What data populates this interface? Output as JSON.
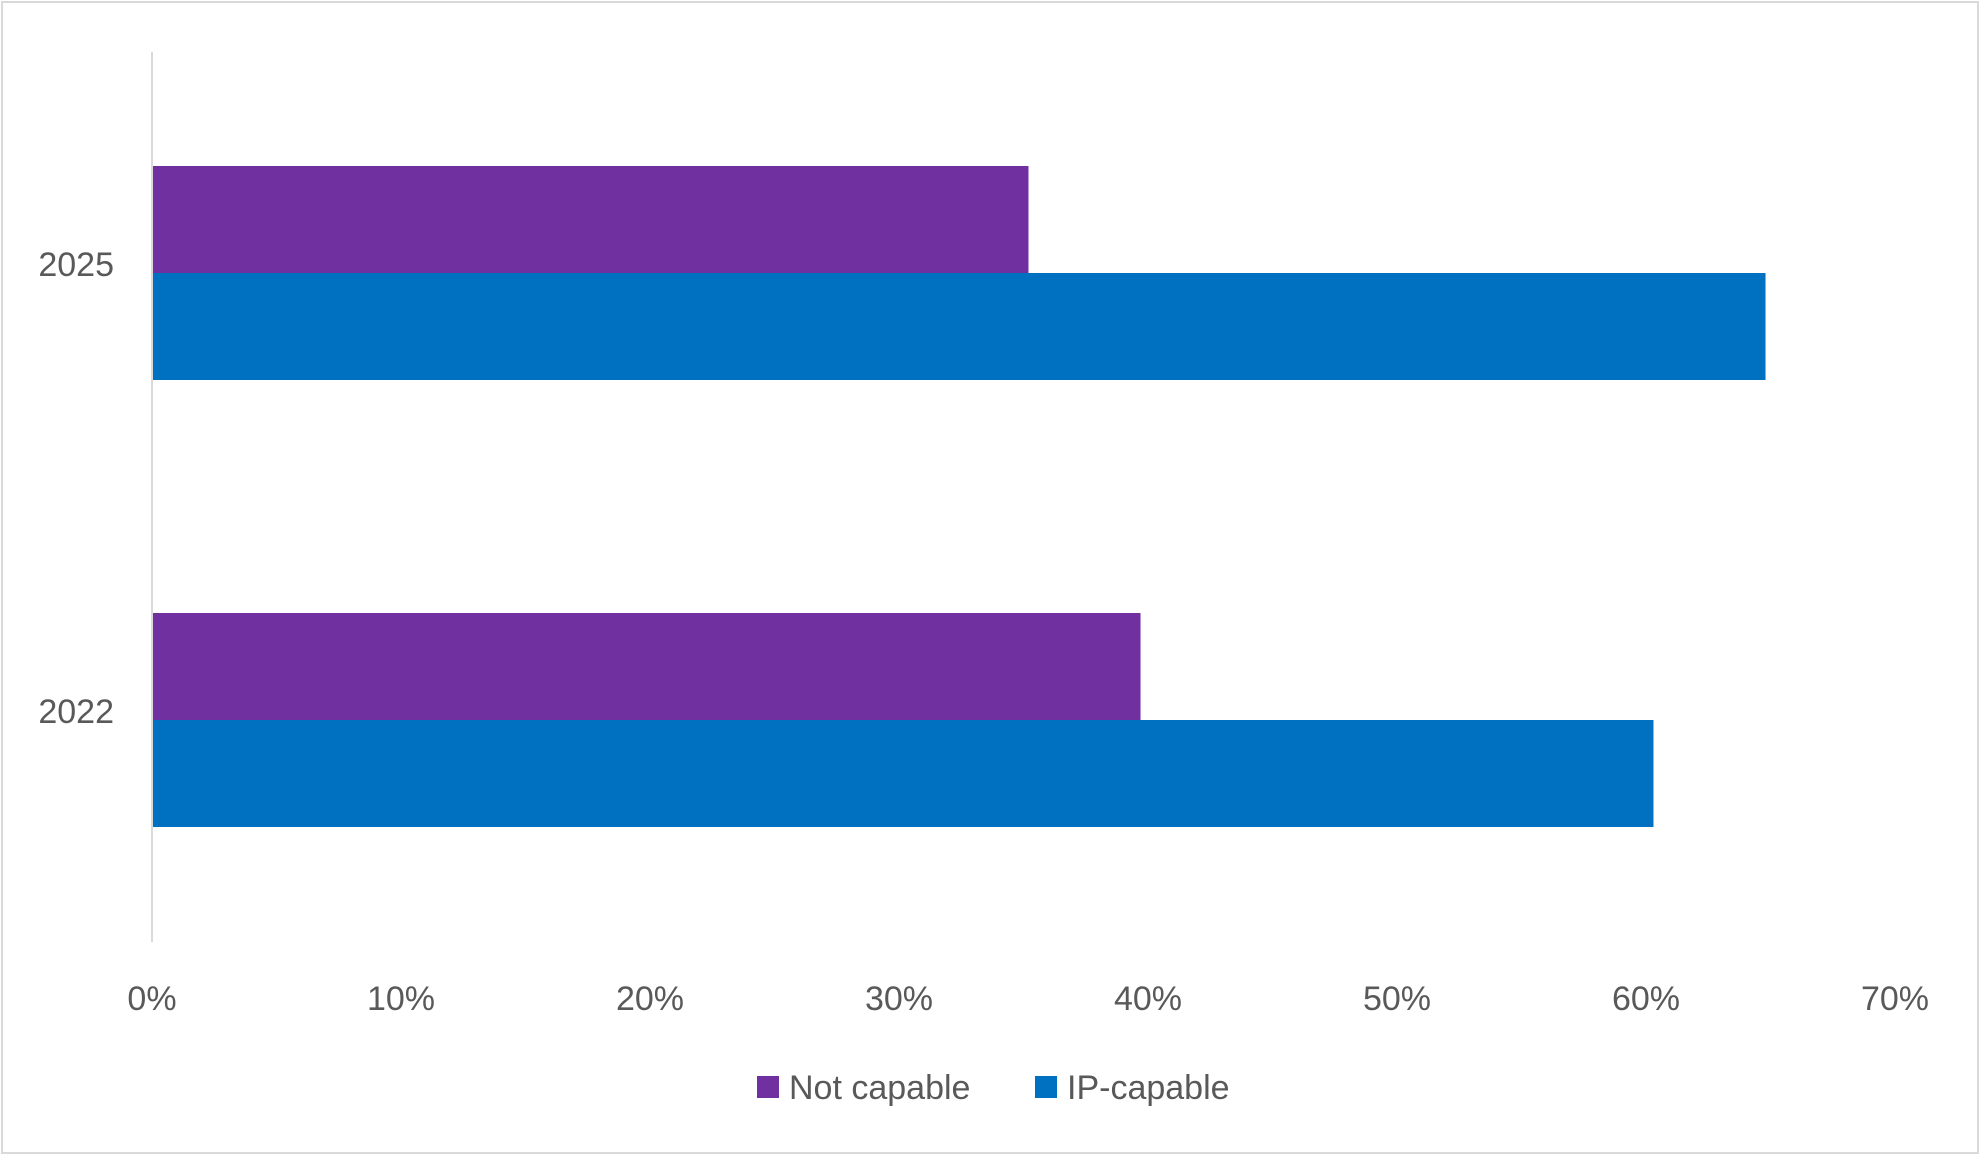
{
  "chart_data": {
    "type": "bar",
    "orientation": "horizontal",
    "categories": [
      "2025",
      "2022"
    ],
    "series": [
      {
        "name": "Not capable",
        "color": "#7030A0",
        "values": [
          0.352,
          0.397
        ]
      },
      {
        "name": "IP-capable",
        "color": "#0070C0",
        "values": [
          0.648,
          0.603
        ]
      }
    ],
    "xlim": [
      0,
      0.7
    ],
    "xticks": [
      "0%",
      "10%",
      "20%",
      "30%",
      "40%",
      "50%",
      "60%",
      "70%"
    ],
    "grid": false,
    "legend": "bottom"
  }
}
